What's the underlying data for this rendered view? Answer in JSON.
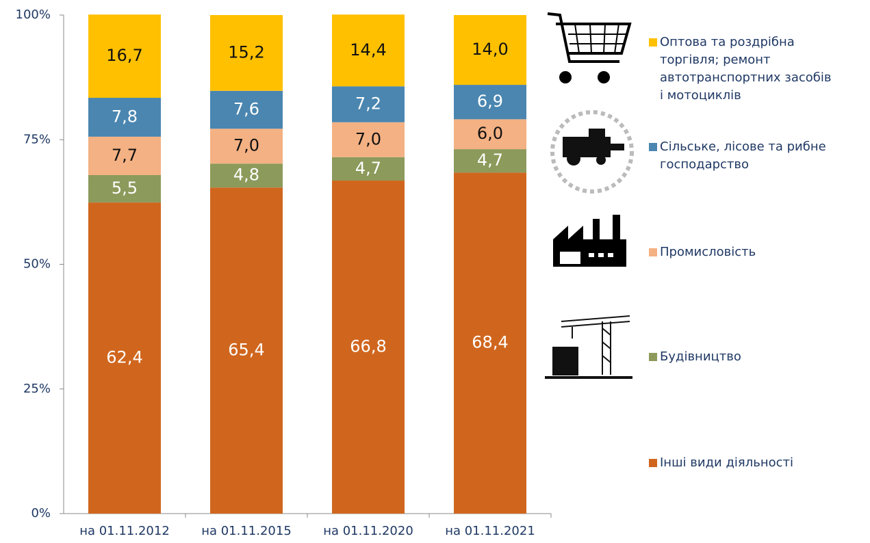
{
  "chart_data": {
    "type": "stacked_bar",
    "categories": [
      "на 01.11.2012",
      "на 01.11.2015",
      "на 01.11.2020",
      "на 01.11.2021"
    ],
    "ylim": [
      0,
      100
    ],
    "yticks": [
      {
        "value": 0,
        "label": "0%"
      },
      {
        "value": 25,
        "label": "25%"
      },
      {
        "value": 50,
        "label": "50%"
      },
      {
        "value": 75,
        "label": "75%"
      },
      {
        "value": 100,
        "label": "100%"
      }
    ],
    "series": [
      {
        "name": "Інші види діяльності",
        "color": "#D0661E",
        "label_color": "#ffffff",
        "values": [
          62.4,
          65.4,
          66.8,
          68.4
        ],
        "value_labels": [
          "62,4",
          "65,4",
          "66,8",
          "68,4"
        ]
      },
      {
        "name": "Будівництво",
        "color": "#8C9A5B",
        "label_color": "#ffffff",
        "values": [
          5.5,
          4.8,
          4.7,
          4.7
        ],
        "value_labels": [
          "5,5",
          "4,8",
          "4,7",
          "4,7"
        ]
      },
      {
        "name": "Промисловість",
        "color": "#F4B183",
        "label_color": "#111111",
        "values": [
          7.7,
          7.0,
          7.0,
          6.0
        ],
        "value_labels": [
          "7,7",
          "7,0",
          "7,0",
          "6,0"
        ]
      },
      {
        "name": "Сільське, лісове та рибне господарство",
        "color": "#4A86B0",
        "label_color": "#ffffff",
        "values": [
          7.8,
          7.6,
          7.2,
          6.9
        ],
        "value_labels": [
          "7,8",
          "7,6",
          "7,2",
          "6,9"
        ]
      },
      {
        "name": "Оптова та роздрібна торгівля;  ремонт автотранспортних засобів і мотоциклів",
        "color": "#FFC000",
        "label_color": "#111111",
        "values": [
          16.7,
          15.2,
          14.4,
          14.0
        ],
        "value_labels": [
          "16,7",
          "15,2",
          "14,4",
          "14,0"
        ]
      }
    ]
  }
}
